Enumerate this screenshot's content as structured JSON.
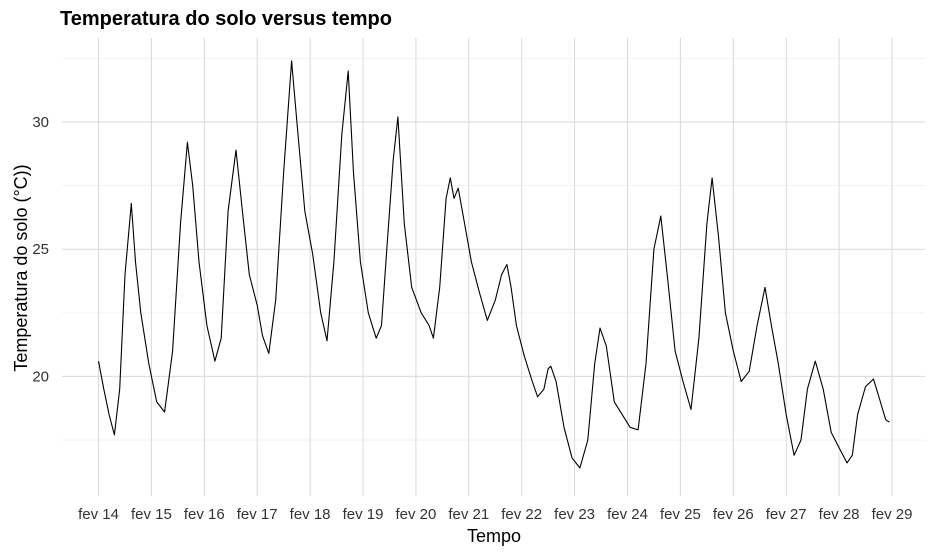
{
  "chart_data": {
    "type": "line",
    "title": "Temperatura do solo versus tempo",
    "xlabel": "Tempo",
    "ylabel": "Temperatura do solo (°C))",
    "xlim": [
      14,
      29
    ],
    "ylim": [
      15.3,
      33.3
    ],
    "grid": true,
    "x_ticks": [
      {
        "value": 14,
        "label": "fev 14"
      },
      {
        "value": 15,
        "label": "fev 15"
      },
      {
        "value": 16,
        "label": "fev 16"
      },
      {
        "value": 17,
        "label": "fev 17"
      },
      {
        "value": 18,
        "label": "fev 18"
      },
      {
        "value": 19,
        "label": "fev 19"
      },
      {
        "value": 20,
        "label": "fev 20"
      },
      {
        "value": 21,
        "label": "fev 21"
      },
      {
        "value": 22,
        "label": "fev 22"
      },
      {
        "value": 23,
        "label": "fev 23"
      },
      {
        "value": 24,
        "label": "fev 24"
      },
      {
        "value": 25,
        "label": "fev 25"
      },
      {
        "value": 26,
        "label": "fev 26"
      },
      {
        "value": 27,
        "label": "fev 27"
      },
      {
        "value": 28,
        "label": "fev 28"
      },
      {
        "value": 29,
        "label": "fev 29"
      }
    ],
    "y_ticks": [
      {
        "value": 20,
        "label": "20"
      },
      {
        "value": 25,
        "label": "25"
      },
      {
        "value": 30,
        "label": "30"
      }
    ],
    "series": [
      {
        "color": "#000000",
        "points": [
          [
            14.0,
            20.6
          ],
          [
            14.1,
            19.5
          ],
          [
            14.2,
            18.5
          ],
          [
            14.3,
            17.7
          ],
          [
            14.4,
            19.5
          ],
          [
            14.5,
            24.0
          ],
          [
            14.62,
            26.8
          ],
          [
            14.7,
            24.5
          ],
          [
            14.8,
            22.5
          ],
          [
            14.95,
            20.5
          ],
          [
            15.1,
            19.0
          ],
          [
            15.25,
            18.6
          ],
          [
            15.4,
            21.0
          ],
          [
            15.55,
            26.0
          ],
          [
            15.68,
            29.2
          ],
          [
            15.78,
            27.5
          ],
          [
            15.9,
            24.5
          ],
          [
            16.05,
            22.0
          ],
          [
            16.2,
            20.6
          ],
          [
            16.32,
            21.5
          ],
          [
            16.45,
            26.5
          ],
          [
            16.6,
            28.9
          ],
          [
            16.72,
            26.5
          ],
          [
            16.85,
            24.0
          ],
          [
            17.0,
            22.8
          ],
          [
            17.1,
            21.6
          ],
          [
            17.22,
            20.9
          ],
          [
            17.35,
            23.0
          ],
          [
            17.5,
            28.0
          ],
          [
            17.65,
            32.4
          ],
          [
            17.75,
            30.0
          ],
          [
            17.9,
            26.5
          ],
          [
            18.05,
            24.8
          ],
          [
            18.2,
            22.5
          ],
          [
            18.32,
            21.4
          ],
          [
            18.45,
            24.5
          ],
          [
            18.6,
            29.5
          ],
          [
            18.72,
            32.0
          ],
          [
            18.82,
            28.0
          ],
          [
            18.95,
            24.5
          ],
          [
            19.1,
            22.5
          ],
          [
            19.25,
            21.5
          ],
          [
            19.35,
            22.0
          ],
          [
            19.45,
            25.0
          ],
          [
            19.57,
            28.5
          ],
          [
            19.66,
            30.2
          ],
          [
            19.78,
            26.0
          ],
          [
            19.92,
            23.5
          ],
          [
            20.1,
            22.5
          ],
          [
            20.25,
            22.0
          ],
          [
            20.33,
            21.5
          ],
          [
            20.45,
            23.5
          ],
          [
            20.57,
            27.0
          ],
          [
            20.65,
            27.8
          ],
          [
            20.72,
            27.0
          ],
          [
            20.8,
            27.4
          ],
          [
            20.92,
            26.0
          ],
          [
            21.05,
            24.5
          ],
          [
            21.2,
            23.3
          ],
          [
            21.35,
            22.2
          ],
          [
            21.5,
            23.0
          ],
          [
            21.62,
            24.0
          ],
          [
            21.72,
            24.4
          ],
          [
            21.8,
            23.5
          ],
          [
            21.9,
            22.0
          ],
          [
            22.05,
            20.8
          ],
          [
            22.2,
            19.8
          ],
          [
            22.3,
            19.2
          ],
          [
            22.42,
            19.5
          ],
          [
            22.5,
            20.3
          ],
          [
            22.55,
            20.4
          ],
          [
            22.65,
            19.8
          ],
          [
            22.8,
            18.0
          ],
          [
            22.95,
            16.8
          ],
          [
            23.1,
            16.4
          ],
          [
            23.25,
            17.5
          ],
          [
            23.38,
            20.5
          ],
          [
            23.48,
            21.9
          ],
          [
            23.6,
            21.2
          ],
          [
            23.75,
            19.0
          ],
          [
            23.9,
            18.5
          ],
          [
            24.05,
            18.0
          ],
          [
            24.2,
            17.9
          ],
          [
            24.35,
            20.5
          ],
          [
            24.5,
            25.0
          ],
          [
            24.63,
            26.3
          ],
          [
            24.75,
            24.0
          ],
          [
            24.9,
            21.0
          ],
          [
            25.05,
            19.8
          ],
          [
            25.2,
            18.7
          ],
          [
            25.35,
            21.5
          ],
          [
            25.5,
            26.0
          ],
          [
            25.6,
            27.8
          ],
          [
            25.72,
            25.5
          ],
          [
            25.85,
            22.5
          ],
          [
            26.0,
            21.0
          ],
          [
            26.15,
            19.8
          ],
          [
            26.3,
            20.2
          ],
          [
            26.45,
            22.0
          ],
          [
            26.6,
            23.5
          ],
          [
            26.72,
            22.0
          ],
          [
            26.85,
            20.5
          ],
          [
            27.0,
            18.5
          ],
          [
            27.15,
            16.9
          ],
          [
            27.28,
            17.5
          ],
          [
            27.4,
            19.5
          ],
          [
            27.55,
            20.6
          ],
          [
            27.7,
            19.5
          ],
          [
            27.85,
            17.8
          ],
          [
            28.0,
            17.2
          ],
          [
            28.15,
            16.6
          ],
          [
            28.25,
            16.9
          ],
          [
            28.35,
            18.5
          ],
          [
            28.5,
            19.6
          ],
          [
            28.65,
            19.9
          ],
          [
            28.78,
            19.0
          ],
          [
            28.88,
            18.3
          ],
          [
            28.95,
            18.2
          ]
        ]
      }
    ]
  }
}
